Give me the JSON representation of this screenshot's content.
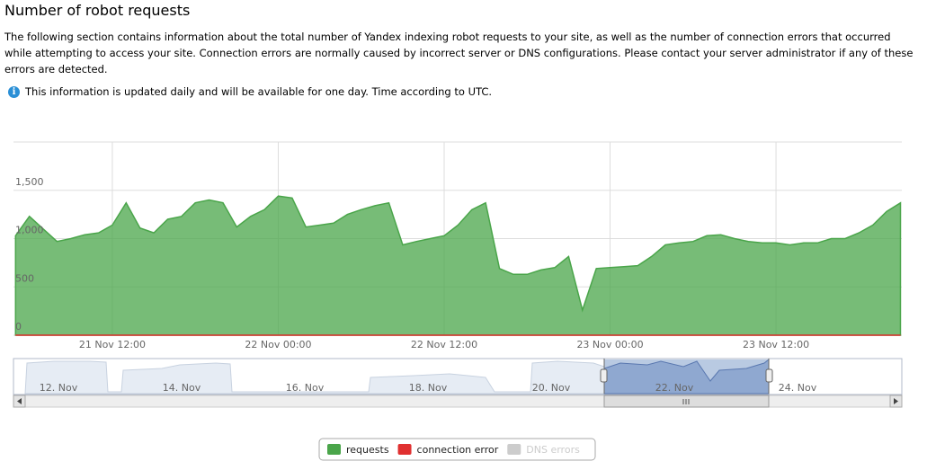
{
  "header": {
    "title": "Number of robot requests",
    "description": "The following section contains information about the total number of Yandex indexing robot requests to your site, as well as the number of connection errors that occurred while attempting to access your site. Connection errors are normally caused by incorrect server or DNS configurations. Please contact your server administrator if any of these errors are detected.",
    "note": "This information is updated daily and will be available for one day. Time according to UTC."
  },
  "chart_data": {
    "type": "area",
    "x": [
      "21 Nov 05:00",
      "21 Nov 06:00",
      "21 Nov 07:00",
      "21 Nov 08:00",
      "21 Nov 09:00",
      "21 Nov 10:00",
      "21 Nov 11:00",
      "21 Nov 12:00",
      "21 Nov 13:00",
      "21 Nov 14:00",
      "21 Nov 15:00",
      "21 Nov 16:00",
      "21 Nov 17:00",
      "21 Nov 18:00",
      "21 Nov 19:00",
      "21 Nov 20:00",
      "21 Nov 21:00",
      "21 Nov 22:00",
      "21 Nov 23:00",
      "22 Nov 00:00",
      "22 Nov 01:00",
      "22 Nov 02:00",
      "22 Nov 03:00",
      "22 Nov 04:00",
      "22 Nov 05:00",
      "22 Nov 06:00",
      "22 Nov 07:00",
      "22 Nov 08:00",
      "22 Nov 09:00",
      "22 Nov 10:00",
      "22 Nov 11:00",
      "22 Nov 12:00",
      "22 Nov 13:00",
      "22 Nov 14:00",
      "22 Nov 15:00",
      "22 Nov 16:00",
      "22 Nov 17:00",
      "22 Nov 18:00",
      "22 Nov 19:00",
      "22 Nov 20:00",
      "22 Nov 21:00",
      "22 Nov 22:00",
      "22 Nov 23:00",
      "23 Nov 00:00",
      "23 Nov 01:00",
      "23 Nov 02:00",
      "23 Nov 03:00",
      "23 Nov 04:00",
      "23 Nov 05:00",
      "23 Nov 06:00",
      "23 Nov 07:00",
      "23 Nov 08:00",
      "23 Nov 09:00",
      "23 Nov 10:00",
      "23 Nov 11:00",
      "23 Nov 12:00",
      "23 Nov 13:00",
      "23 Nov 14:00",
      "23 Nov 15:00",
      "23 Nov 16:00",
      "23 Nov 17:00",
      "23 Nov 18:00",
      "23 Nov 19:00",
      "23 Nov 20:00",
      "23 Nov 21:00"
    ],
    "series": [
      {
        "name": "requests",
        "color": "#4aa54a",
        "visible": true,
        "values": [
          1030,
          1230,
          1100,
          970,
          1000,
          1040,
          1060,
          1140,
          1370,
          1110,
          1060,
          1200,
          1230,
          1370,
          1400,
          1370,
          1120,
          1230,
          1300,
          1440,
          1420,
          1120,
          1140,
          1160,
          1250,
          1300,
          1340,
          1370,
          935,
          970,
          1000,
          1030,
          1140,
          1300,
          1370,
          690,
          630,
          630,
          675,
          700,
          815,
          260,
          690,
          700,
          710,
          720,
          815,
          935,
          955,
          970,
          1030,
          1040,
          1000,
          970,
          955,
          955,
          935,
          955,
          955,
          1000,
          1000,
          1060,
          1140,
          1280,
          1370
        ]
      },
      {
        "name": "connection error",
        "color": "#e03030",
        "visible": true,
        "values": [
          0,
          0,
          0,
          0,
          0,
          0,
          0,
          0,
          0,
          0,
          0,
          0,
          0,
          0,
          0,
          0,
          0,
          0,
          0,
          0,
          0,
          0,
          0,
          0,
          0,
          0,
          0,
          0,
          0,
          0,
          0,
          0,
          0,
          0,
          0,
          0,
          0,
          0,
          0,
          0,
          0,
          0,
          0,
          0,
          0,
          0,
          0,
          0,
          0,
          0,
          0,
          0,
          0,
          0,
          0,
          0,
          0,
          0,
          0,
          0,
          0,
          0,
          0,
          0,
          0
        ]
      },
      {
        "name": "DNS errors",
        "color": "#cccccc",
        "visible": false
      }
    ],
    "xlim": [
      "21 Nov 04:51",
      "23 Nov 21:06"
    ],
    "xticks": [
      "21 Nov 12:00",
      "22 Nov 00:00",
      "22 Nov 12:00",
      "23 Nov 00:00",
      "23 Nov 12:00"
    ],
    "ylim": [
      0,
      2000
    ],
    "yticks": [
      0,
      500,
      {
        "value": 1000,
        "label": "1,000"
      },
      {
        "value": 1500,
        "label": "1,500"
      }
    ],
    "grid": true,
    "navigator_labels": [
      "12. Nov",
      "14. Nov",
      "16. Nov",
      "18. Nov",
      "20. Nov",
      "22. Nov",
      "24. Nov"
    ]
  }
}
